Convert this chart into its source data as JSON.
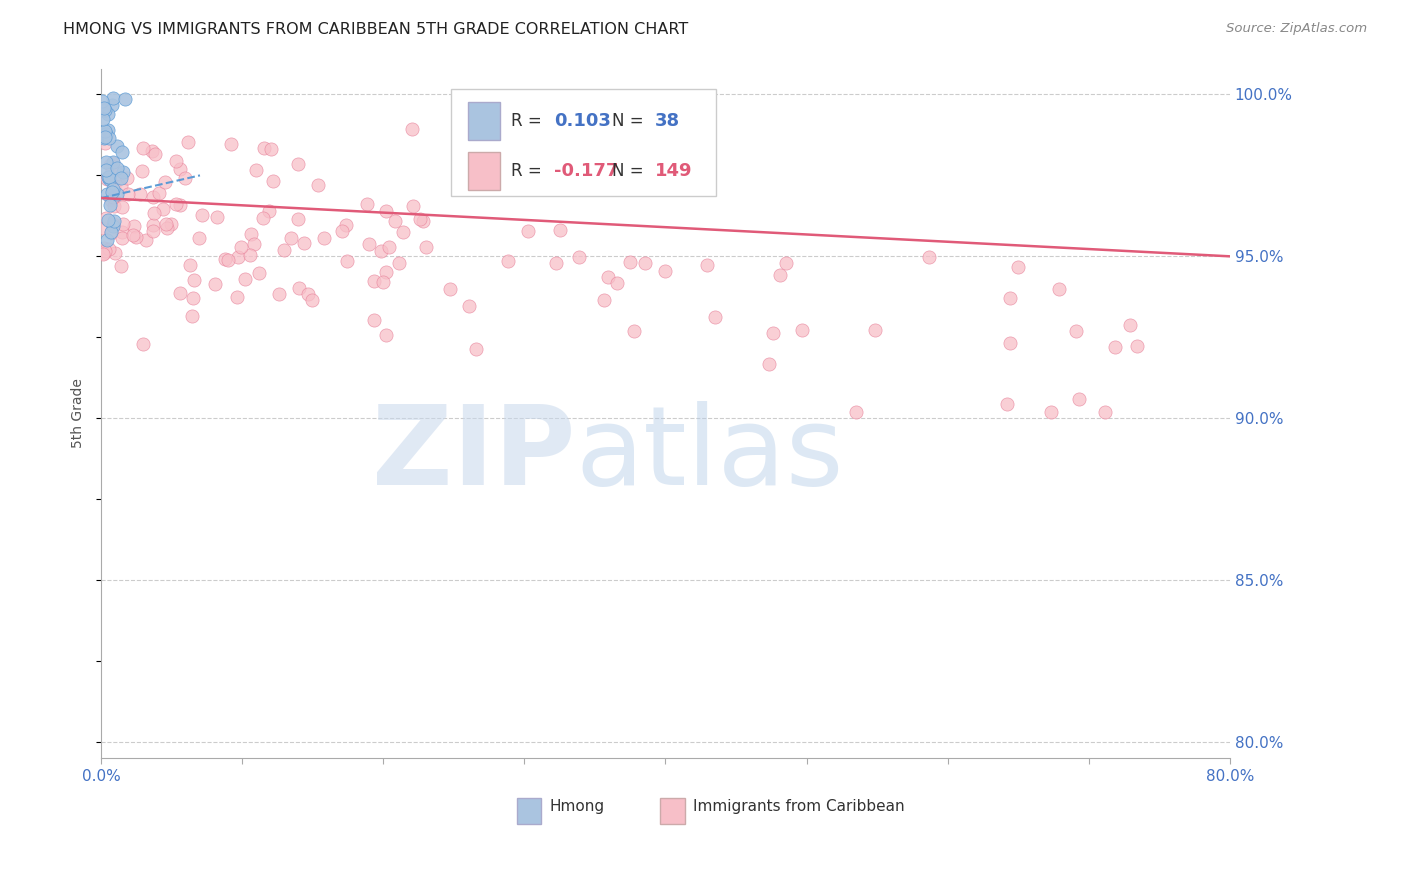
{
  "title": "HMONG VS IMMIGRANTS FROM CARIBBEAN 5TH GRADE CORRELATION CHART",
  "source": "Source: ZipAtlas.com",
  "ylabel": "5th Grade",
  "xlim": [
    0.0,
    0.8
  ],
  "ylim": [
    0.795,
    1.008
  ],
  "yticks_right": [
    0.8,
    0.85,
    0.9,
    0.95,
    1.0
  ],
  "yticklabels_right": [
    "80.0%",
    "85.0%",
    "90.0%",
    "95.0%",
    "100.0%"
  ],
  "hlines": [
    0.8,
    0.85,
    0.9,
    0.95,
    1.0
  ],
  "hmong_R": 0.103,
  "hmong_N": 38,
  "caribbean_R": -0.177,
  "caribbean_N": 149,
  "hmong_color": "#aac4e0",
  "hmong_edge_color": "#5b9bd5",
  "hmong_line_color": "#5b9bd5",
  "caribbean_color": "#f7bfc8",
  "caribbean_edge_color": "#e8829a",
  "caribbean_line_color": "#e05a78",
  "title_color": "#222222",
  "axis_label_color": "#555555",
  "right_tick_color": "#4472c4",
  "xtick_color": "#4472c4"
}
